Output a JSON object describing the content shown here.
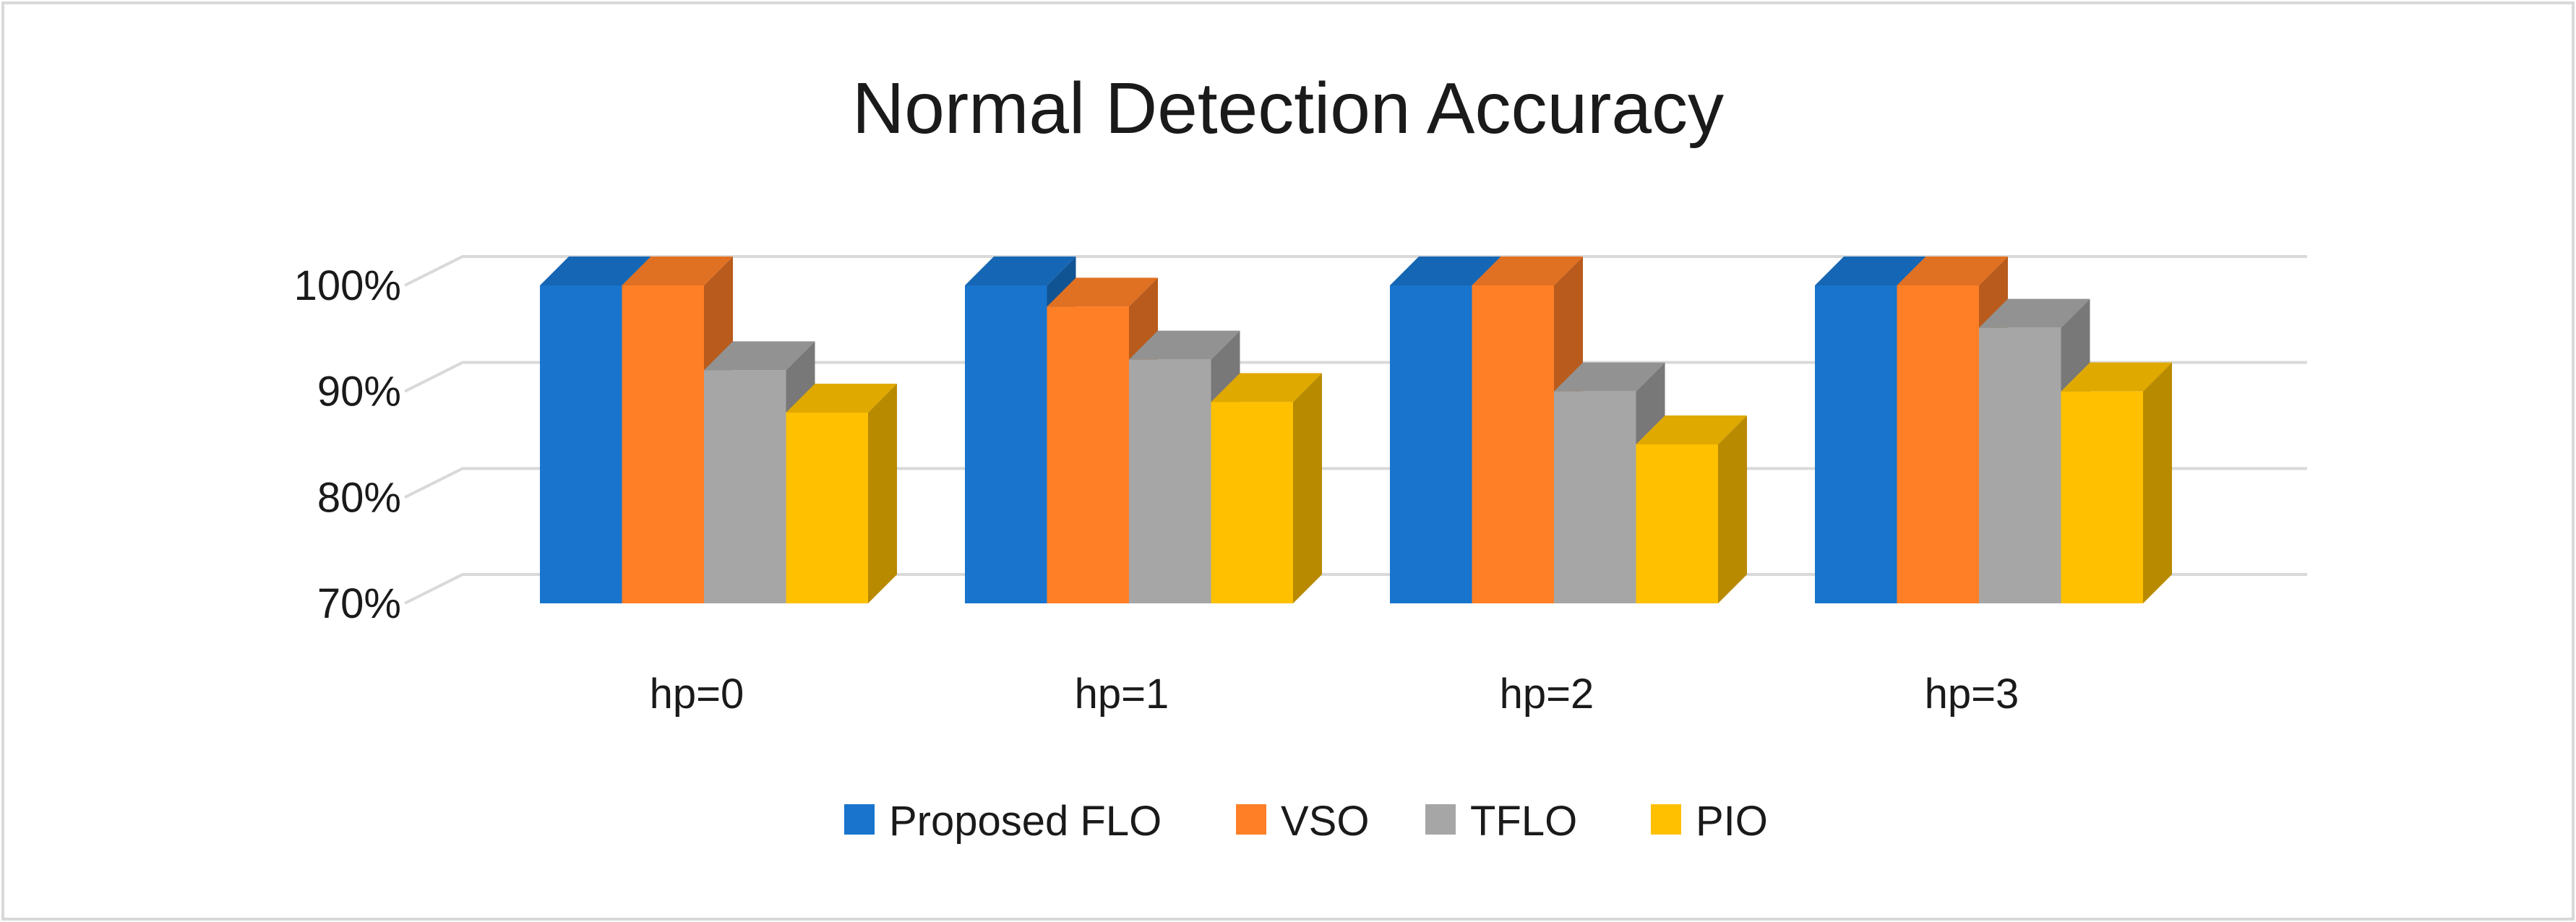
{
  "chart_data": {
    "type": "bar",
    "title": "Normal Detection Accuracy",
    "categories": [
      "hp=0",
      "hp=1",
      "hp=2",
      "hp=3"
    ],
    "series": [
      {
        "name": "Proposed FLO",
        "values": [
          100,
          100,
          100,
          100
        ],
        "color": "#1874CD"
      },
      {
        "name": "VSO",
        "values": [
          100,
          98,
          100,
          100
        ],
        "color": "#FF7F27"
      },
      {
        "name": "TFLO",
        "values": [
          92,
          93,
          90,
          96
        ],
        "color": "#A6A6A6"
      },
      {
        "name": "PIO",
        "values": [
          88,
          89,
          85,
          90
        ],
        "color": "#FFC000"
      }
    ],
    "ylim": [
      70,
      100
    ],
    "yticks": [
      70,
      80,
      90,
      100
    ],
    "ytick_labels": [
      "70%",
      "80%",
      "90%",
      "100%"
    ],
    "xlabel": "",
    "ylabel": "",
    "grid": true,
    "legend_position": "bottom",
    "style": "3d-clustered-column"
  }
}
